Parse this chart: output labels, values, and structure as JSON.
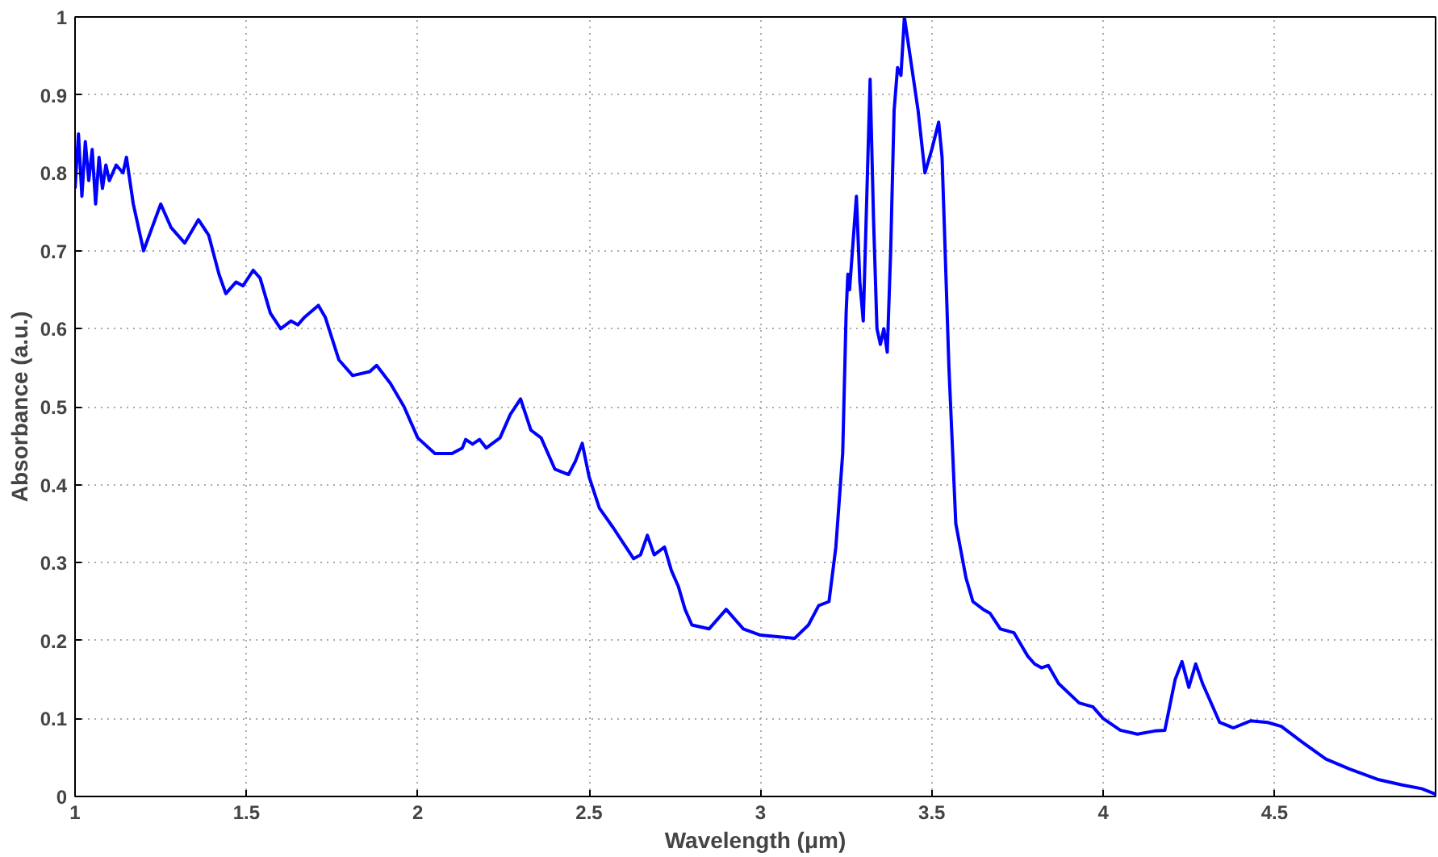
{
  "chart_data": {
    "type": "line",
    "xlabel": "Wavelength (μm)",
    "ylabel": "Absorbance (a.u.)",
    "xlim": [
      1,
      4.97
    ],
    "ylim": [
      0,
      1
    ],
    "xticks": [
      1,
      1.5,
      2,
      2.5,
      3,
      3.5,
      4,
      4.5
    ],
    "yticks": [
      0,
      0.1,
      0.2,
      0.3,
      0.4,
      0.5,
      0.6,
      0.7,
      0.8,
      0.9,
      1
    ],
    "grid": true,
    "marker": "none",
    "line_style": "solid",
    "series": [
      {
        "color": "#0000ff",
        "x": [
          1.0,
          1.01,
          1.02,
          1.03,
          1.04,
          1.05,
          1.06,
          1.07,
          1.08,
          1.09,
          1.1,
          1.12,
          1.14,
          1.15,
          1.17,
          1.2,
          1.25,
          1.28,
          1.32,
          1.36,
          1.39,
          1.42,
          1.44,
          1.47,
          1.49,
          1.52,
          1.54,
          1.57,
          1.6,
          1.63,
          1.65,
          1.67,
          1.71,
          1.73,
          1.77,
          1.81,
          1.86,
          1.88,
          1.92,
          1.96,
          2.0,
          2.05,
          2.1,
          2.13,
          2.14,
          2.16,
          2.18,
          2.2,
          2.24,
          2.27,
          2.3,
          2.33,
          2.36,
          2.4,
          2.44,
          2.46,
          2.48,
          2.5,
          2.53,
          2.57,
          2.6,
          2.63,
          2.65,
          2.67,
          2.69,
          2.72,
          2.74,
          2.76,
          2.78,
          2.8,
          2.85,
          2.9,
          2.95,
          3.0,
          3.05,
          3.1,
          3.14,
          3.17,
          3.2,
          3.22,
          3.24,
          3.25,
          3.255,
          3.26,
          3.28,
          3.29,
          3.3,
          3.32,
          3.33,
          3.34,
          3.35,
          3.36,
          3.37,
          3.38,
          3.39,
          3.4,
          3.41,
          3.42,
          3.46,
          3.48,
          3.5,
          3.52,
          3.53,
          3.55,
          3.57,
          3.6,
          3.62,
          3.65,
          3.67,
          3.7,
          3.74,
          3.78,
          3.8,
          3.82,
          3.84,
          3.87,
          3.93,
          3.97,
          4.0,
          4.05,
          4.1,
          4.15,
          4.18,
          4.21,
          4.23,
          4.25,
          4.27,
          4.29,
          4.31,
          4.34,
          4.38,
          4.43,
          4.48,
          4.52,
          4.58,
          4.65,
          4.72,
          4.8,
          4.87,
          4.93,
          4.97
        ],
        "values": [
          0.78,
          0.85,
          0.77,
          0.84,
          0.79,
          0.83,
          0.76,
          0.82,
          0.78,
          0.81,
          0.79,
          0.81,
          0.8,
          0.82,
          0.76,
          0.7,
          0.76,
          0.73,
          0.71,
          0.74,
          0.72,
          0.67,
          0.645,
          0.66,
          0.655,
          0.675,
          0.665,
          0.62,
          0.6,
          0.61,
          0.605,
          0.615,
          0.63,
          0.615,
          0.56,
          0.54,
          0.545,
          0.553,
          0.53,
          0.5,
          0.46,
          0.44,
          0.44,
          0.447,
          0.458,
          0.452,
          0.458,
          0.447,
          0.46,
          0.49,
          0.51,
          0.47,
          0.46,
          0.42,
          0.413,
          0.43,
          0.453,
          0.41,
          0.37,
          0.345,
          0.325,
          0.305,
          0.31,
          0.335,
          0.31,
          0.32,
          0.29,
          0.27,
          0.24,
          0.22,
          0.215,
          0.24,
          0.215,
          0.207,
          0.205,
          0.203,
          0.22,
          0.245,
          0.25,
          0.32,
          0.44,
          0.62,
          0.67,
          0.65,
          0.77,
          0.66,
          0.61,
          0.92,
          0.74,
          0.6,
          0.58,
          0.6,
          0.57,
          0.7,
          0.88,
          0.935,
          0.925,
          1.0,
          0.88,
          0.8,
          0.83,
          0.865,
          0.82,
          0.55,
          0.35,
          0.28,
          0.25,
          0.24,
          0.235,
          0.215,
          0.21,
          0.18,
          0.17,
          0.165,
          0.168,
          0.145,
          0.12,
          0.115,
          0.1,
          0.085,
          0.08,
          0.084,
          0.085,
          0.15,
          0.173,
          0.14,
          0.17,
          0.145,
          0.125,
          0.095,
          0.088,
          0.097,
          0.095,
          0.09,
          0.07,
          0.048,
          0.035,
          0.022,
          0.015,
          0.01,
          0.003
        ]
      }
    ]
  }
}
